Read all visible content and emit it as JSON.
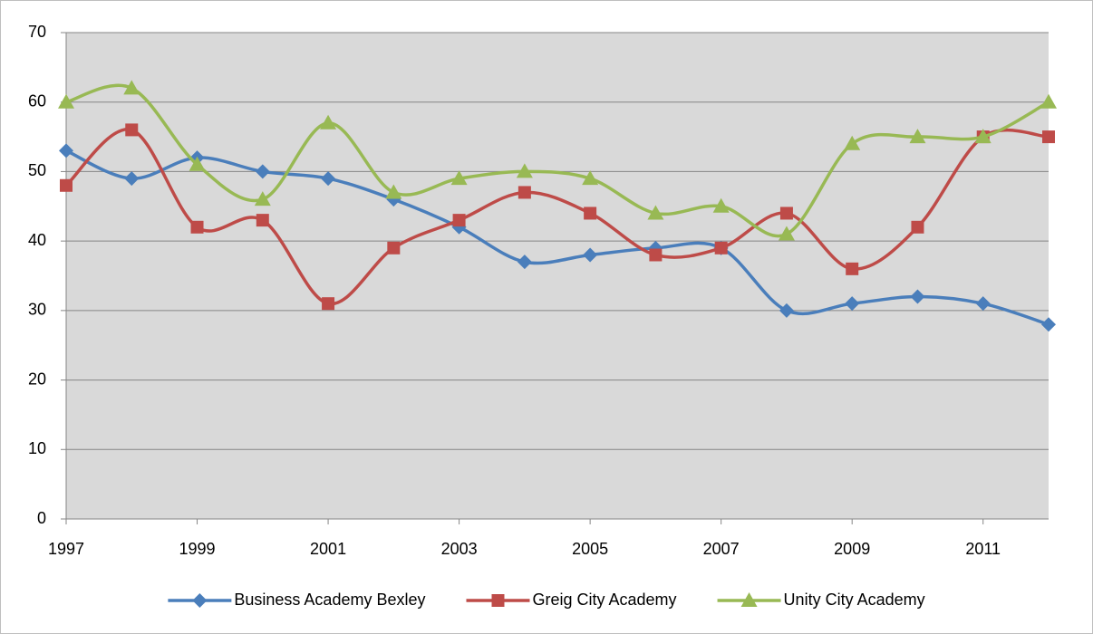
{
  "chart_data": {
    "type": "line",
    "x": [
      1997,
      1998,
      1999,
      2000,
      2001,
      2002,
      2003,
      2004,
      2005,
      2006,
      2007,
      2008,
      2009,
      2010,
      2011,
      2012
    ],
    "xlim": [
      1997,
      2012
    ],
    "xticks": [
      1997,
      1999,
      2001,
      2003,
      2005,
      2007,
      2009,
      2011
    ],
    "ylim": [
      0,
      70
    ],
    "yticks": [
      0,
      10,
      20,
      30,
      40,
      50,
      60,
      70
    ],
    "grid": true,
    "smooth": true,
    "legend": "bottom",
    "series": [
      {
        "name": "Business Academy Bexley",
        "color": "#4a7ebb",
        "marker": "diamond",
        "values": [
          53,
          49,
          52,
          50,
          49,
          46,
          42,
          37,
          38,
          39,
          39,
          30,
          31,
          32,
          31,
          28
        ]
      },
      {
        "name": "Greig City Academy",
        "color": "#be4b48",
        "marker": "square",
        "values": [
          48,
          56,
          42,
          43,
          31,
          39,
          43,
          47,
          44,
          38,
          39,
          44,
          36,
          42,
          55,
          55
        ]
      },
      {
        "name": "Unity City Academy",
        "color": "#98b954",
        "marker": "triangle",
        "values": [
          60,
          62,
          51,
          46,
          57,
          47,
          49,
          50,
          49,
          44,
          45,
          41,
          54,
          55,
          55,
          60
        ]
      }
    ]
  }
}
